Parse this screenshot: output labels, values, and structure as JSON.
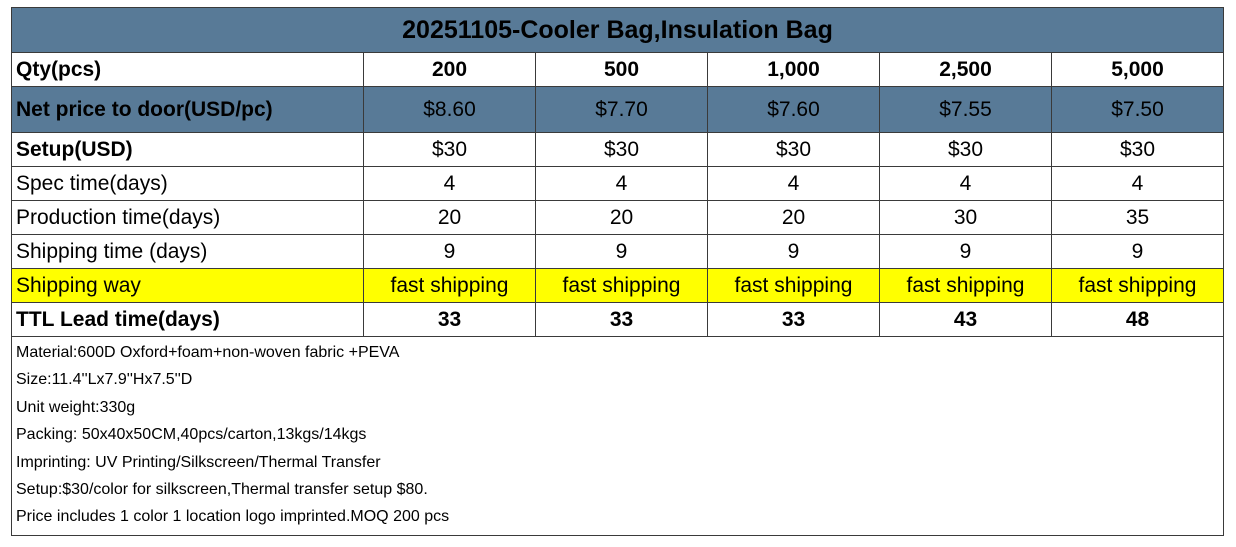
{
  "table": {
    "title": "20251105-Cooler Bag,Insulation Bag",
    "rows": [
      [
        "Qty(pcs)",
        "200",
        "500",
        "1,000",
        "2,500",
        "5,000"
      ],
      [
        "Net price to door(USD/pc)",
        "$8.60",
        "$7.70",
        "$7.60",
        "$7.55",
        "$7.50"
      ],
      [
        "Setup(USD)",
        "$30",
        "$30",
        "$30",
        "$30",
        "$30"
      ],
      [
        "Spec time(days)",
        "4",
        "4",
        "4",
        "4",
        "4"
      ],
      [
        "Production time(days)",
        "20",
        "20",
        "20",
        "30",
        "35"
      ],
      [
        "Shipping time (days)",
        "9",
        "9",
        "9",
        "9",
        "9"
      ],
      [
        "Shipping way",
        "fast shipping",
        "fast shipping",
        "fast shipping",
        "fast shipping",
        "fast shipping"
      ],
      [
        "TTL Lead time(days)",
        "33",
        "33",
        "33",
        "43",
        "48"
      ]
    ],
    "notes": [
      "Material:600D Oxford+foam+non-woven fabric +PEVA",
      "Size:11.4''Lx7.9''Hx7.5''D",
      "Unit weight:330g",
      "Packing:  50x40x50CM,40pcs/carton,13kgs/14kgs",
      "Imprinting: UV Printing/Silkscreen/Thermal Transfer",
      "Setup:$30/color for silkscreen,Thermal transfer setup $80.",
      "Price includes 1 color 1 location logo imprinted.MOQ 200 pcs"
    ]
  }
}
